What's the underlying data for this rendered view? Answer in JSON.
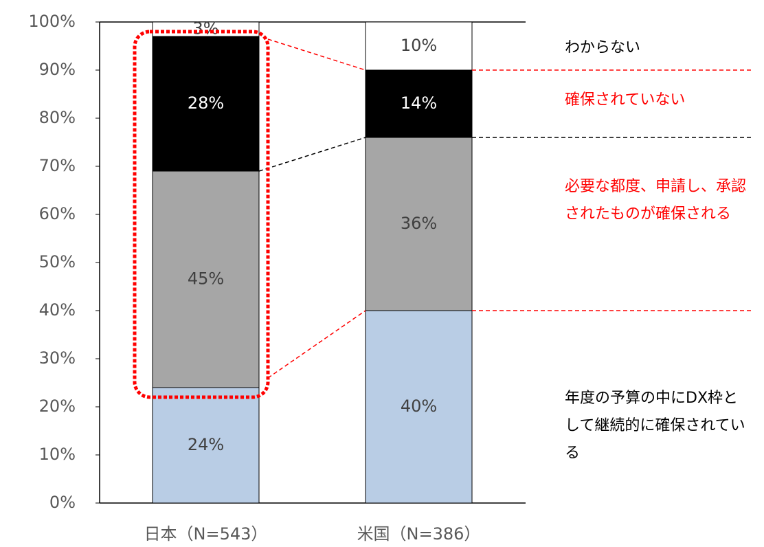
{
  "chart_data": {
    "type": "stacked_bar",
    "categories": [
      "日本（N=543）",
      "米国（N=386）"
    ],
    "series": [
      {
        "name": "年度の予算の中にDX枠として継続的に確保されている",
        "color": "#b9cde5",
        "label_color": "#000000",
        "values": [
          24,
          40
        ],
        "value_labels": [
          "24%",
          "40%"
        ]
      },
      {
        "name": "必要な都度、申請し、承認されたものが確保される",
        "color": "#a6a6a6",
        "label_color": "#ff0000",
        "values": [
          45,
          36
        ],
        "value_labels": [
          "45%",
          "36%"
        ]
      },
      {
        "name": "確保されていない",
        "color": "#000000",
        "label_color": "#ff0000",
        "values": [
          28,
          14
        ],
        "value_labels": [
          "28%",
          "14%"
        ]
      },
      {
        "name": "わからない",
        "color": "#ffffff",
        "label_color": "#000000",
        "values": [
          3,
          10
        ],
        "value_labels": [
          "3%",
          "10%"
        ]
      }
    ],
    "ylim": [
      0,
      100
    ],
    "yticks": [
      {
        "value": 0,
        "label": "0%"
      },
      {
        "value": 10,
        "label": "10%"
      },
      {
        "value": 20,
        "label": "20%"
      },
      {
        "value": 30,
        "label": "30%"
      },
      {
        "value": 40,
        "label": "40%"
      },
      {
        "value": 50,
        "label": "50%"
      },
      {
        "value": 60,
        "label": "60%"
      },
      {
        "value": 70,
        "label": "70%"
      },
      {
        "value": 80,
        "label": "80%"
      },
      {
        "value": 90,
        "label": "90%"
      },
      {
        "value": 100,
        "label": "100%"
      }
    ]
  }
}
